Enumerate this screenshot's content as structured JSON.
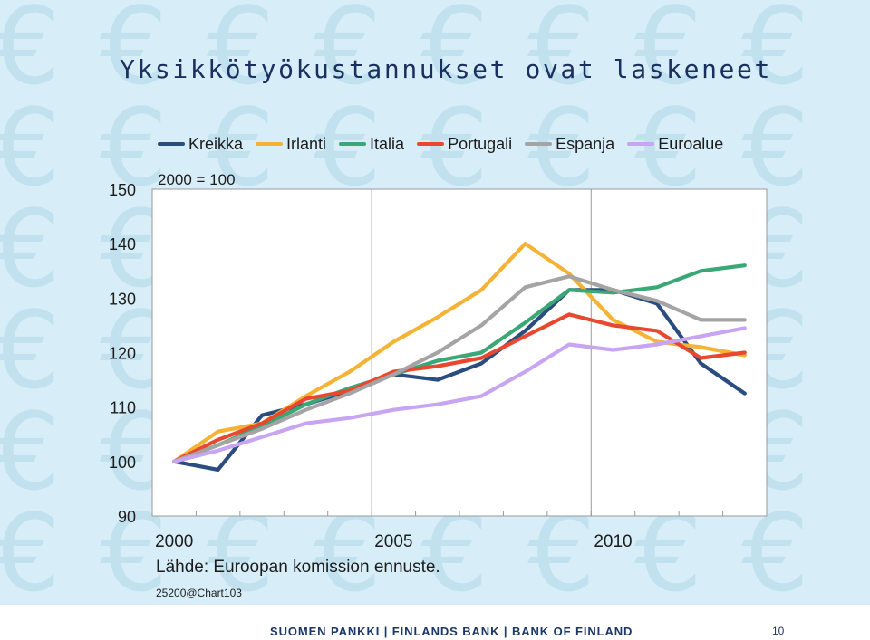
{
  "slide": {
    "title": "Yksikkötyökustannukset ovat laskeneet",
    "index_note": "2000 = 100",
    "source": "Lähde: Euroopan komission ennuste.",
    "chart_id": "25200@Chart103",
    "footer": "SUOMEN PANKKI | FINLANDS BANK | BANK OF FINLAND",
    "page_number": "10"
  },
  "chart_data": {
    "type": "line",
    "title": "",
    "xlabel": "",
    "ylabel": "",
    "ylim": [
      90,
      150
    ],
    "yticks": [
      90,
      100,
      110,
      120,
      130,
      140,
      150
    ],
    "xlim": [
      1999.5,
      2013.5
    ],
    "xtick_labels": [
      "2000",
      "2005",
      "2010"
    ],
    "xtick_values": [
      2000,
      2005,
      2010
    ],
    "x": [
      2000,
      2001,
      2002,
      2003,
      2004,
      2005,
      2006,
      2007,
      2008,
      2009,
      2010,
      2011,
      2012,
      2013
    ],
    "grid": "vertical lines at 2004.5 and 2009.5",
    "legend_position": "top",
    "series": [
      {
        "name": "Kreikka",
        "color": "#2b4c7e",
        "values": [
          100,
          98.5,
          108.5,
          110.5,
          113,
          116,
          115,
          118,
          124,
          131.5,
          131.5,
          129,
          118,
          112.5
        ]
      },
      {
        "name": "Irlanti",
        "color": "#f5b335",
        "values": [
          100,
          105.5,
          107,
          112,
          116.5,
          122,
          126.5,
          131.5,
          140,
          134.5,
          126,
          122,
          121,
          119.5
        ]
      },
      {
        "name": "Italia",
        "color": "#3aa777",
        "values": [
          100,
          103,
          106.5,
          110.5,
          113.5,
          116,
          118.5,
          120,
          125.5,
          131.5,
          131,
          132,
          135,
          136
        ]
      },
      {
        "name": "Portugali",
        "color": "#e8482f",
        "values": [
          100,
          104,
          107,
          111.5,
          113,
          116.5,
          117.5,
          119,
          123,
          127,
          125,
          124,
          119,
          120
        ]
      },
      {
        "name": "Espanja",
        "color": "#a4a4a4",
        "values": [
          100,
          103,
          106,
          109.5,
          112.5,
          116,
          120,
          125,
          132,
          134,
          131.5,
          129.5,
          126,
          126
        ]
      },
      {
        "name": "Euroalue",
        "color": "#c7a5f3",
        "values": [
          100,
          102,
          104.5,
          107,
          108,
          109.5,
          110.5,
          112,
          116.5,
          121.5,
          120.5,
          121.5,
          123,
          124.5
        ]
      }
    ]
  }
}
